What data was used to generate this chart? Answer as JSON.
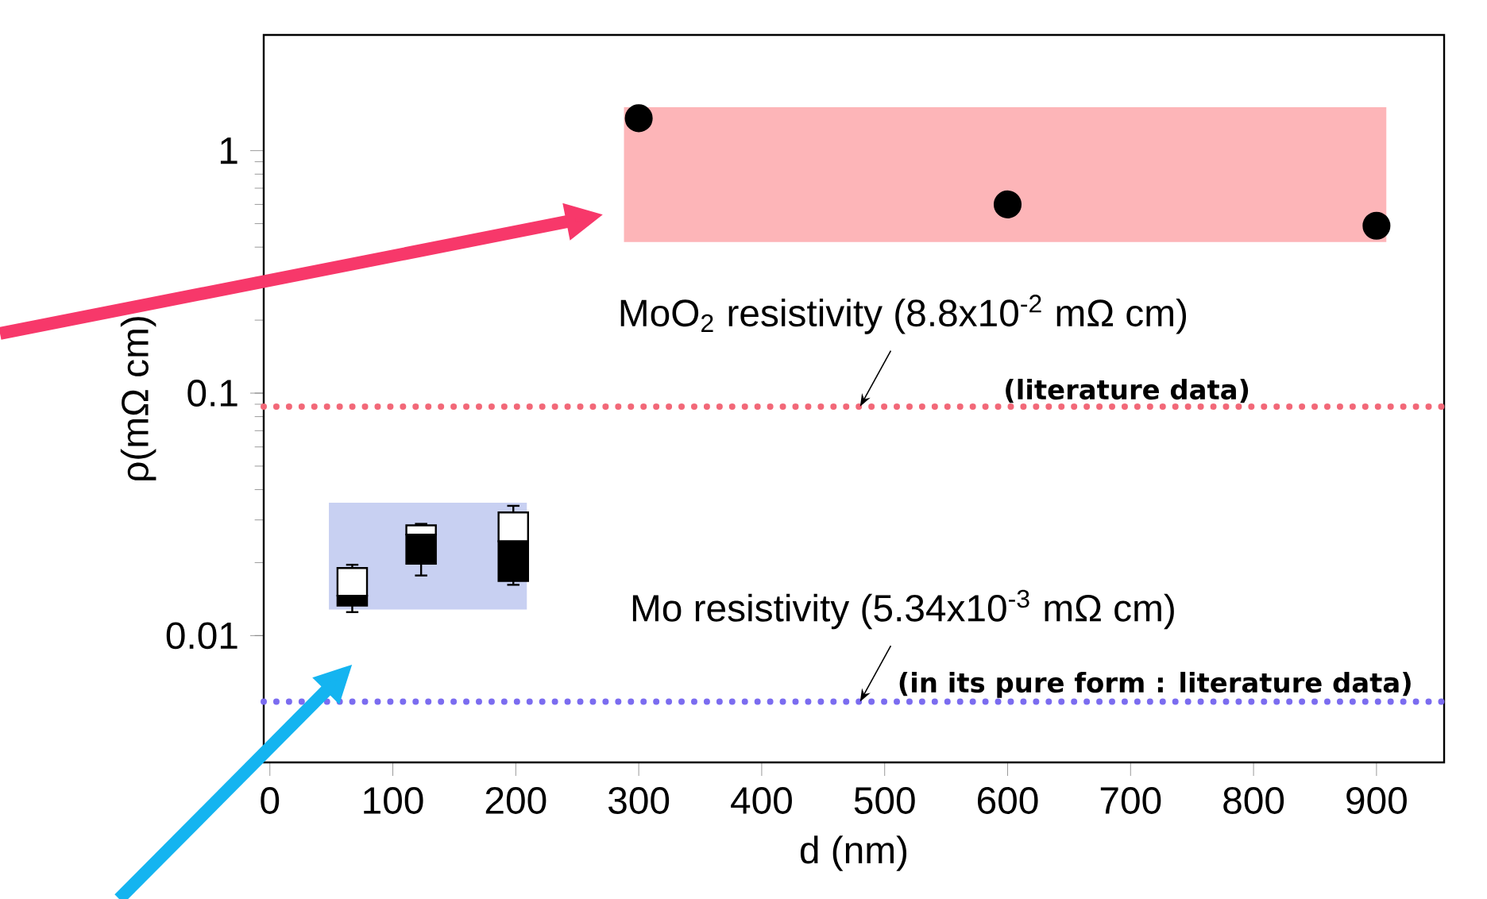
{
  "chart_data": {
    "type": "scatter",
    "xlabel": "d (nm)",
    "ylabel": "ρ(mΩ cm)",
    "log": "y",
    "grid": false,
    "marker": "circle",
    "xlim": [
      -5,
      955
    ],
    "ylim": [
      0.003,
      3
    ],
    "xticks": [
      0,
      100,
      200,
      300,
      400,
      500,
      600,
      700,
      800,
      900
    ],
    "yticks": [
      0.01,
      0.1,
      1
    ],
    "series": [
      {
        "type": "box",
        "x": [
          67,
          123,
          198
        ],
        "color": "#000000",
        "boxes": [
          {
            "low": 0.0125,
            "q1": 0.0133,
            "median": 0.0146,
            "q3": 0.019,
            "high": 0.0196
          },
          {
            "low": 0.0177,
            "q1": 0.0198,
            "median": 0.0261,
            "q3": 0.0285,
            "high": 0.0289
          },
          {
            "low": 0.0162,
            "q1": 0.0168,
            "median": 0.0245,
            "q3": 0.0322,
            "high": 0.0343
          }
        ]
      },
      {
        "x": [
          300,
          600,
          900
        ],
        "values": [
          1.36,
          0.6,
          0.49
        ],
        "color": "#000000"
      }
    ],
    "ref_lines": [
      {
        "axis": "y",
        "value": 0.088,
        "label": "MoO$_{2}$ resistivity (8.8x10$^{-2}$ mΩ cm)",
        "color": "#f26878",
        "line_style": "dotted"
      },
      {
        "axis": "y",
        "value": 0.00534,
        "label": "Mo resistivity (5.34x10$^{-3}$ mΩ cm)",
        "color": "#7b6cf0",
        "line_style": "dotted"
      }
    ],
    "annotations": [
      {
        "text": "(literature data)",
        "x": 697,
        "y": 0.088
      },
      {
        "text": "(in its pure form : literature data)",
        "x": 720,
        "y": 0.00534
      }
    ]
  }
}
